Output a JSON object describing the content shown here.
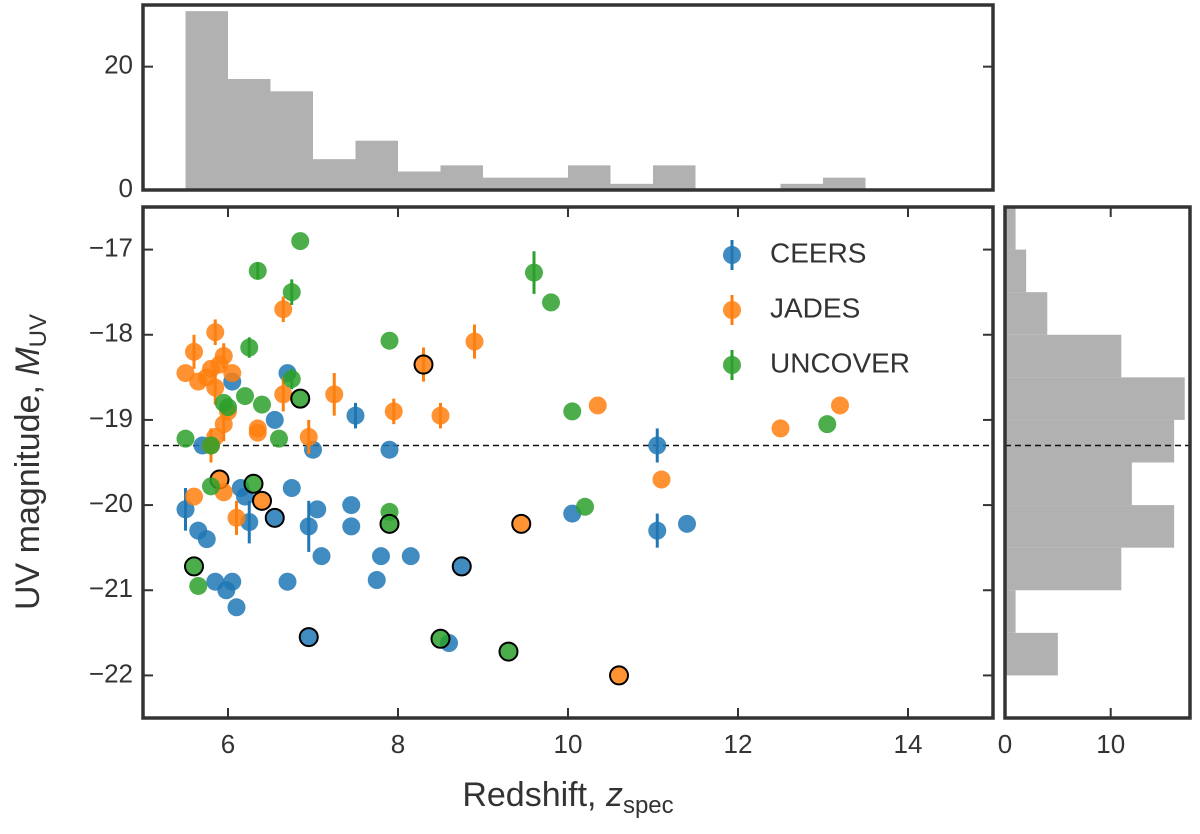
{
  "chart_data": [
    {
      "type": "scatter",
      "legend": "upper right",
      "x_label": {
        "text": "Redshift, ",
        "symbol": "z",
        "subscript": "spec"
      },
      "y_label": {
        "text": "UV magnitude, ",
        "symbol": "M",
        "subscript": "UV"
      },
      "xlim": [
        5,
        15
      ],
      "xticks": [
        6,
        8,
        10,
        12,
        14
      ],
      "ylim": [
        -22.5,
        -16.5
      ],
      "yticks": [
        {
          "value": -17,
          "label": "−17"
        },
        {
          "value": -18,
          "label": "−18"
        },
        {
          "value": -19,
          "label": "−19"
        },
        {
          "value": -20,
          "label": "−20"
        },
        {
          "value": -21,
          "label": "−21"
        },
        {
          "value": -22,
          "label": "−22"
        }
      ],
      "hline": -19.3,
      "outline_color": "#000000",
      "series": [
        {
          "name": "CEERS",
          "color": "#1f77b4",
          "x": [
            5.5,
            5.65,
            5.75,
            5.7,
            5.85,
            5.98,
            6.05,
            6.1,
            6.05,
            6.15,
            6.25,
            6.2,
            6.55,
            6.55,
            6.7,
            6.75,
            6.7,
            6.95,
            6.95,
            7.0,
            7.05,
            7.1,
            7.5,
            7.45,
            7.45,
            7.8,
            7.75,
            7.9,
            8.15,
            8.75,
            8.6,
            10.05,
            11.05,
            11.05,
            11.4
          ],
          "values": [
            -20.05,
            -20.3,
            -20.4,
            -19.3,
            -20.9,
            -21.0,
            -20.9,
            -21.2,
            -18.55,
            -19.8,
            -20.2,
            -19.9,
            -19.0,
            -20.15,
            -18.45,
            -19.8,
            -20.9,
            -20.25,
            -21.55,
            -19.35,
            -20.05,
            -20.6,
            -18.95,
            -20.0,
            -20.25,
            -20.6,
            -20.88,
            -19.35,
            -20.6,
            -20.72,
            -21.62,
            -20.1,
            -19.3,
            -20.3,
            -20.22
          ],
          "errors": [
            0.25,
            null,
            null,
            null,
            null,
            null,
            null,
            null,
            null,
            null,
            0.25,
            null,
            null,
            null,
            null,
            null,
            null,
            0.3,
            null,
            null,
            null,
            null,
            0.15,
            null,
            null,
            null,
            null,
            null,
            null,
            null,
            null,
            null,
            0.2,
            0.2,
            null
          ],
          "outlined": [
            false,
            false,
            false,
            false,
            false,
            false,
            false,
            false,
            false,
            false,
            false,
            false,
            false,
            true,
            false,
            false,
            false,
            false,
            true,
            false,
            false,
            false,
            false,
            false,
            false,
            false,
            false,
            false,
            false,
            true,
            false,
            false,
            false,
            false,
            false
          ]
        },
        {
          "name": "JADES",
          "color": "#ff7f0e",
          "x": [
            5.5,
            5.6,
            5.65,
            5.6,
            5.75,
            5.85,
            5.8,
            5.85,
            5.85,
            5.8,
            5.9,
            5.95,
            5.95,
            6.0,
            6.05,
            5.9,
            5.95,
            6.1,
            6.35,
            6.35,
            6.4,
            6.65,
            6.65,
            6.95,
            7.25,
            7.95,
            8.3,
            8.5,
            8.9,
            9.45,
            10.35,
            10.6,
            11.1,
            12.5,
            13.2
          ],
          "values": [
            -18.45,
            -18.2,
            -18.55,
            -19.9,
            -18.5,
            -17.97,
            -18.4,
            -18.62,
            -19.2,
            -19.3,
            -18.35,
            -18.25,
            -19.05,
            -18.9,
            -18.45,
            -19.7,
            -19.85,
            -20.15,
            -19.1,
            -19.15,
            -19.95,
            -17.7,
            -18.7,
            -19.2,
            -18.7,
            -18.9,
            -18.35,
            -18.95,
            -18.08,
            -20.22,
            -18.83,
            -22.0,
            -19.7,
            -19.1,
            -18.83
          ],
          "errors": [
            null,
            0.2,
            null,
            null,
            null,
            0.15,
            null,
            0.2,
            null,
            0.2,
            null,
            0.15,
            0.2,
            null,
            null,
            null,
            null,
            0.2,
            null,
            null,
            null,
            0.15,
            0.2,
            0.2,
            0.25,
            0.15,
            0.2,
            0.15,
            0.2,
            null,
            null,
            null,
            null,
            null,
            null
          ],
          "outlined": [
            false,
            false,
            false,
            false,
            false,
            false,
            false,
            false,
            false,
            false,
            false,
            false,
            false,
            false,
            false,
            true,
            false,
            false,
            false,
            false,
            true,
            false,
            false,
            false,
            false,
            false,
            true,
            false,
            false,
            true,
            false,
            true,
            false,
            false,
            false
          ]
        },
        {
          "name": "UNCOVER",
          "color": "#2ca02c",
          "x": [
            5.5,
            5.6,
            5.65,
            5.8,
            5.8,
            5.95,
            6.0,
            6.25,
            6.2,
            6.35,
            6.4,
            6.6,
            6.3,
            6.75,
            6.75,
            6.85,
            6.85,
            7.9,
            7.9,
            7.9,
            8.5,
            9.3,
            9.6,
            9.8,
            10.05,
            10.2,
            13.05
          ],
          "values": [
            -19.22,
            -20.72,
            -20.95,
            -19.78,
            -19.3,
            -18.8,
            -18.85,
            -18.15,
            -18.72,
            -17.25,
            -18.82,
            -19.22,
            -19.75,
            -17.5,
            -18.52,
            -18.75,
            -16.9,
            -18.07,
            -20.08,
            -20.22,
            -21.57,
            -21.72,
            -17.27,
            -17.62,
            -18.9,
            -20.02,
            -19.05
          ],
          "errors": [
            null,
            null,
            null,
            null,
            null,
            null,
            null,
            0.12,
            null,
            0.1,
            null,
            null,
            null,
            0.15,
            0.12,
            null,
            null,
            null,
            null,
            null,
            null,
            null,
            0.25,
            null,
            null,
            null,
            null
          ],
          "outlined": [
            false,
            true,
            false,
            false,
            false,
            false,
            false,
            false,
            false,
            false,
            false,
            false,
            true,
            false,
            false,
            true,
            false,
            false,
            false,
            true,
            true,
            true,
            false,
            false,
            false,
            false,
            false
          ]
        }
      ]
    },
    {
      "type": "histogram",
      "orientation": "vertical",
      "color": "#a9a9a9",
      "bins": [
        5.5,
        6.0,
        6.5,
        7.0,
        7.5,
        8.0,
        8.5,
        9.0,
        9.5,
        10.0,
        10.5,
        11.0,
        11.5,
        12.0,
        12.5,
        13.0,
        13.5
      ],
      "values": [
        29,
        18,
        16,
        5,
        8,
        3,
        4,
        2,
        2,
        4,
        1,
        4,
        0,
        0,
        1,
        2
      ],
      "xlim": [
        5,
        15
      ],
      "ylim": [
        0,
        30
      ],
      "yticks": [
        0,
        20
      ]
    },
    {
      "type": "histogram",
      "orientation": "horizontal",
      "color": "#a9a9a9",
      "bins": [
        -22,
        -21.5,
        -21,
        -20.5,
        -20,
        -19.5,
        -19,
        -18.5,
        -18,
        -17.5,
        -17,
        -16.5
      ],
      "values": [
        5,
        1,
        11,
        16,
        12,
        16,
        17,
        11,
        4,
        2,
        1
      ],
      "ylim": [
        -22.5,
        -16.5
      ],
      "xlim": [
        0,
        17.5
      ],
      "xticks": [
        0,
        10
      ],
      "hline": -19.3
    }
  ]
}
